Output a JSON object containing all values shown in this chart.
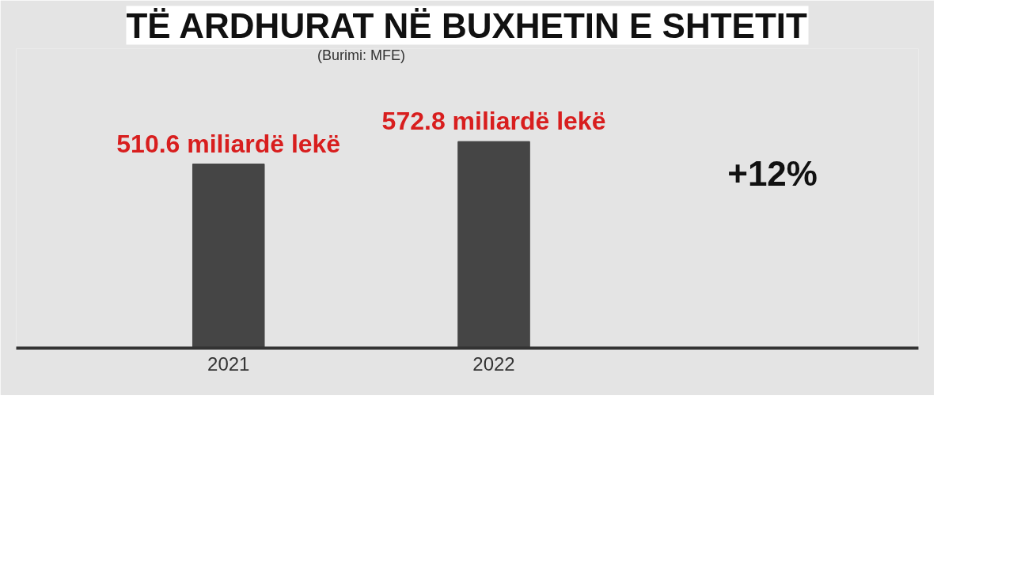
{
  "chart_data": {
    "type": "bar",
    "title": "TË ARDHURAT NË BUXHETIN E SHTETIT",
    "subtitle": "(Burimi: MFE)",
    "categories": [
      "2021",
      "2022"
    ],
    "values": [
      510.6,
      572.8
    ],
    "color": "#454545",
    "value_labels": [
      "510.6 miliardë lekë",
      "572.8 miliardë lekë"
    ],
    "annotations": [
      "+12%"
    ]
  }
}
